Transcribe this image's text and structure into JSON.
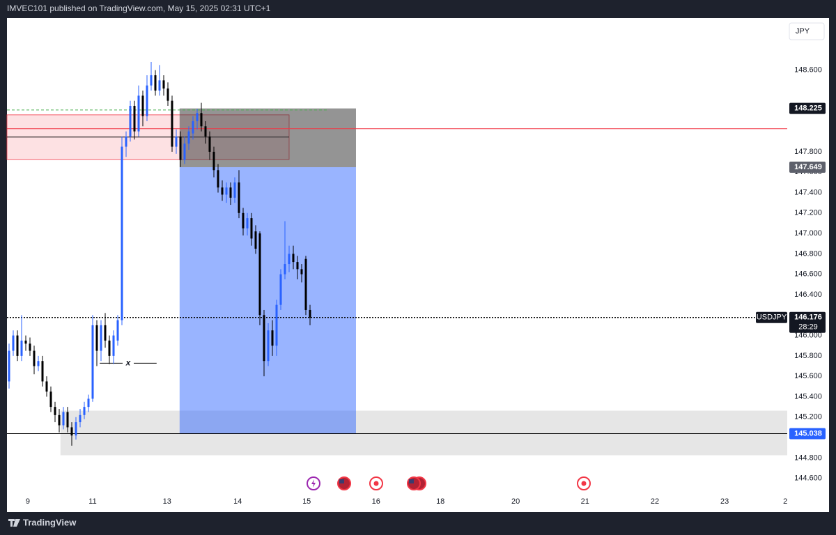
{
  "header": {
    "text": "IMVEC101 published on TradingView.com, May 15, 2025 02:31 UTC+1"
  },
  "footer": {
    "brand": "TradingView"
  },
  "chart_data": {
    "type": "candlestick",
    "currency": "JPY",
    "up_color": "#2962ff",
    "down_color": "#000000",
    "grid": false,
    "x": [
      0,
      1,
      2,
      3,
      4,
      5,
      6,
      7,
      8,
      9,
      10,
      11,
      12,
      13,
      14,
      15,
      16,
      17,
      18,
      19,
      20,
      21,
      22,
      23,
      24,
      25,
      26,
      27,
      28,
      29,
      30,
      31,
      32,
      33,
      34,
      35,
      36,
      37,
      38,
      39,
      40,
      41,
      42,
      43,
      44,
      45,
      46,
      47,
      48,
      49,
      50,
      51,
      52,
      53,
      54,
      55,
      56,
      57,
      58,
      59,
      60,
      61,
      62,
      63,
      64,
      65,
      66,
      67,
      68,
      69,
      70,
      71,
      72
    ],
    "open": [
      145.55,
      145.85,
      146.0,
      145.8,
      145.95,
      145.92,
      145.85,
      145.7,
      145.75,
      145.55,
      145.45,
      145.3,
      145.22,
      145.12,
      145.25,
      145.1,
      145.02,
      145.15,
      145.22,
      145.3,
      145.38,
      146.1,
      145.85,
      146.1,
      145.95,
      145.8,
      145.95,
      146.15,
      147.85,
      147.95,
      148.25,
      148.0,
      148.35,
      148.15,
      148.45,
      148.55,
      148.4,
      148.5,
      148.42,
      148.3,
      147.85,
      147.95,
      147.72,
      147.88,
      147.98,
      148.1,
      148.18,
      148.05,
      147.95,
      147.8,
      147.62,
      147.45,
      147.38,
      147.45,
      147.35,
      147.5,
      147.2,
      147.05,
      147.15,
      147.02,
      147.0,
      146.2,
      145.75,
      146.05,
      145.9,
      146.3,
      146.6,
      146.7,
      146.8,
      146.72,
      146.65,
      146.75,
      146.25
    ],
    "high": [
      145.92,
      146.05,
      146.05,
      146.2,
      146.0,
      145.98,
      145.9,
      145.8,
      145.8,
      145.6,
      145.5,
      145.35,
      145.28,
      145.3,
      145.3,
      145.15,
      145.2,
      145.28,
      145.35,
      145.42,
      146.2,
      146.15,
      146.15,
      146.22,
      146.0,
      146.05,
      146.2,
      147.95,
      148.0,
      148.3,
      148.3,
      148.45,
      148.4,
      148.55,
      148.68,
      148.6,
      148.65,
      148.55,
      148.48,
      148.35,
      148.02,
      148.0,
      147.95,
      148.05,
      148.15,
      148.22,
      148.28,
      148.1,
      148.0,
      147.85,
      147.68,
      147.52,
      147.5,
      147.5,
      147.55,
      147.62,
      147.25,
      147.2,
      147.2,
      147.08,
      147.02,
      146.25,
      146.12,
      146.15,
      146.35,
      146.65,
      147.12,
      146.88,
      146.88,
      146.78,
      146.7,
      146.78,
      146.3
    ],
    "low": [
      145.48,
      145.8,
      145.75,
      145.75,
      145.85,
      145.8,
      145.62,
      145.65,
      145.5,
      145.4,
      145.25,
      145.15,
      145.05,
      145.08,
      145.05,
      144.92,
      144.98,
      145.1,
      145.18,
      145.25,
      145.35,
      145.7,
      145.75,
      145.88,
      145.72,
      145.72,
      145.9,
      146.1,
      147.75,
      147.9,
      147.92,
      147.95,
      148.05,
      148.1,
      148.4,
      148.35,
      148.35,
      148.35,
      148.25,
      147.8,
      147.78,
      147.65,
      147.68,
      147.82,
      147.92,
      148.02,
      148.0,
      147.88,
      147.72,
      147.55,
      147.4,
      147.32,
      147.3,
      147.28,
      147.3,
      147.15,
      146.98,
      146.98,
      146.88,
      146.8,
      146.1,
      145.6,
      145.7,
      145.8,
      145.8,
      146.25,
      146.55,
      146.62,
      146.65,
      146.55,
      146.52,
      146.2,
      146.1
    ],
    "close": [
      145.85,
      146.0,
      145.8,
      145.95,
      145.92,
      145.85,
      145.7,
      145.75,
      145.55,
      145.45,
      145.3,
      145.22,
      145.12,
      145.25,
      145.1,
      145.02,
      145.15,
      145.22,
      145.3,
      145.38,
      146.1,
      145.85,
      146.1,
      145.95,
      145.8,
      146.0,
      146.15,
      147.85,
      147.95,
      148.25,
      148.0,
      148.35,
      148.15,
      148.45,
      148.55,
      148.4,
      148.5,
      148.42,
      148.3,
      147.85,
      147.95,
      147.72,
      147.88,
      148.0,
      148.1,
      148.18,
      148.05,
      147.95,
      147.8,
      147.62,
      147.45,
      147.38,
      147.45,
      147.35,
      147.5,
      147.2,
      147.05,
      147.15,
      146.95,
      146.85,
      146.2,
      145.75,
      146.05,
      145.9,
      146.3,
      146.6,
      146.7,
      146.8,
      146.72,
      146.65,
      146.6,
      146.25,
      146.176
    ],
    "xlim": [
      -0.5,
      186.17
    ],
    "xticks": [
      {
        "value": 4.5,
        "label": "9"
      },
      {
        "value": 20,
        "label": "11"
      },
      {
        "value": 37.8,
        "label": "13"
      },
      {
        "value": 54.7,
        "label": "14"
      },
      {
        "value": 71.2,
        "label": "15"
      },
      {
        "value": 87.8,
        "label": "16"
      },
      {
        "value": 103.2,
        "label": "18"
      },
      {
        "value": 121.2,
        "label": "20"
      },
      {
        "value": 137.8,
        "label": "21"
      },
      {
        "value": 154.5,
        "label": "22"
      },
      {
        "value": 171.2,
        "label": "23"
      },
      {
        "value": 185.7,
        "label": "2"
      }
    ],
    "ylim": [
      144.27,
      149.11
    ],
    "yticks": [
      {
        "value": 148.6,
        "label": "148.600"
      },
      {
        "value": 147.8,
        "label": "147.800"
      },
      {
        "value": 147.6,
        "label": "147.600"
      },
      {
        "value": 147.4,
        "label": "147.400"
      },
      {
        "value": 147.2,
        "label": "147.200"
      },
      {
        "value": 147.0,
        "label": "147.000"
      },
      {
        "value": 146.8,
        "label": "146.800"
      },
      {
        "value": 146.6,
        "label": "146.600"
      },
      {
        "value": 146.4,
        "label": "146.400"
      },
      {
        "value": 146.0,
        "label": "146.000"
      },
      {
        "value": 145.8,
        "label": "145.800"
      },
      {
        "value": 145.6,
        "label": "145.600"
      },
      {
        "value": 145.4,
        "label": "145.400"
      },
      {
        "value": 145.2,
        "label": "145.200"
      },
      {
        "value": 144.8,
        "label": "144.800"
      },
      {
        "value": 144.6,
        "label": "144.600"
      }
    ],
    "supply_zone": {
      "top": 148.162,
      "bottom": 147.725,
      "mid": 147.944,
      "x_end": 67.0
    },
    "demand_zone": {
      "top": 145.263,
      "bottom": 144.826,
      "x_start": 12.3
    },
    "red_line": 148.026,
    "green_dashed": {
      "price": 148.21,
      "x_end": 76.2
    },
    "position": {
      "stop": 148.225,
      "entry": 147.649,
      "target": 145.038,
      "x_start": 40.8,
      "x_end": 83.0
    },
    "annotation": {
      "text": "x",
      "price": 145.728,
      "x_range": [
        21.7,
        35.3
      ]
    },
    "last_price": {
      "symbol": "USDJPY",
      "value": 146.176,
      "countdown": "28:29"
    }
  }
}
